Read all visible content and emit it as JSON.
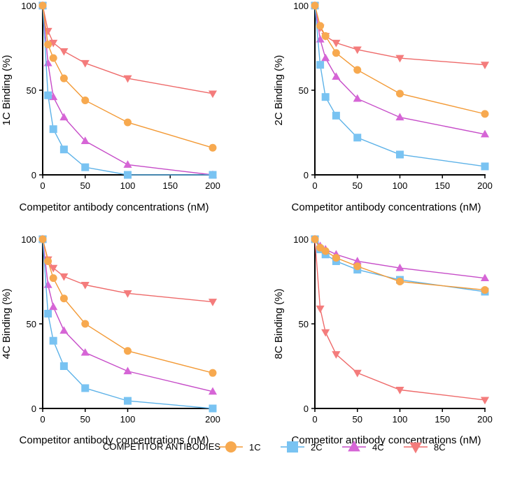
{
  "legend": {
    "title": "COMPETITOR ANTIBODIES",
    "items": [
      {
        "name": "1C",
        "color": "#F7A94F",
        "stroke": "#F39A36",
        "marker": "circle"
      },
      {
        "name": "2C",
        "color": "#79C3F2",
        "stroke": "#5DB2E8",
        "marker": "square"
      },
      {
        "name": "4C",
        "color": "#D665D6",
        "stroke": "#C64CC8",
        "marker": "triangle-up"
      },
      {
        "name": "8C",
        "color": "#F47C7C",
        "stroke": "#EE6A6A",
        "marker": "triangle-down"
      }
    ]
  },
  "chart_data": [
    {
      "type": "line",
      "title": "",
      "xlabel": "Competitor antibody concentrations (nM)",
      "ylabel": "1C Binding (%)",
      "xlim": [
        0,
        200
      ],
      "ylim": [
        0,
        100
      ],
      "xticks": [
        0,
        50,
        100,
        150,
        200
      ],
      "yticks": [
        0,
        50,
        100
      ],
      "x": [
        0,
        6.25,
        12.5,
        25,
        50,
        100,
        200
      ],
      "series": [
        {
          "name": "1C",
          "values": [
            100,
            77,
            69,
            57,
            44,
            31,
            16
          ]
        },
        {
          "name": "2C",
          "values": [
            100,
            47,
            27,
            15,
            4.5,
            0,
            0
          ]
        },
        {
          "name": "4C",
          "values": [
            100,
            66,
            46,
            34,
            20,
            6,
            0
          ]
        },
        {
          "name": "8C",
          "values": [
            100,
            85,
            78,
            73,
            66,
            57,
            48
          ]
        }
      ]
    },
    {
      "type": "line",
      "title": "",
      "xlabel": "Competitor antibody concentrations (nM)",
      "ylabel": "2C Binding (%)",
      "xlim": [
        0,
        200
      ],
      "ylim": [
        0,
        100
      ],
      "xticks": [
        0,
        50,
        100,
        150,
        200
      ],
      "yticks": [
        0,
        50,
        100
      ],
      "x": [
        0,
        6.25,
        12.5,
        25,
        50,
        100,
        200
      ],
      "series": [
        {
          "name": "1C",
          "values": [
            100,
            88,
            82,
            72,
            62,
            48,
            36
          ]
        },
        {
          "name": "2C",
          "values": [
            100,
            65,
            46,
            35,
            22,
            12,
            5
          ]
        },
        {
          "name": "4C",
          "values": [
            100,
            80,
            69,
            58,
            45,
            34,
            24
          ]
        },
        {
          "name": "8C",
          "values": [
            100,
            87,
            82,
            78,
            74,
            69,
            65
          ]
        }
      ]
    },
    {
      "type": "line",
      "title": "",
      "xlabel": "Competitor antibody concentrations (nM)",
      "ylabel": "4C Binding (%)",
      "xlim": [
        0,
        200
      ],
      "ylim": [
        0,
        100
      ],
      "xticks": [
        0,
        50,
        100,
        200
      ],
      "yticks": [
        0,
        50,
        100
      ],
      "x": [
        0,
        6.25,
        12.5,
        25,
        50,
        100,
        200
      ],
      "series": [
        {
          "name": "1C",
          "values": [
            100,
            87,
            77,
            65,
            50,
            34,
            21
          ]
        },
        {
          "name": "2C",
          "values": [
            100,
            56,
            40,
            25,
            12,
            4.5,
            0
          ]
        },
        {
          "name": "4C",
          "values": [
            100,
            73,
            60,
            46,
            33,
            22,
            10
          ]
        },
        {
          "name": "8C",
          "values": [
            100,
            88,
            83,
            78,
            73,
            68,
            63
          ]
        }
      ]
    },
    {
      "type": "line",
      "title": "",
      "xlabel": "Competitor antibody concentrations (nM)",
      "ylabel": "8C Binding (%)",
      "xlim": [
        0,
        200
      ],
      "ylim": [
        0,
        100
      ],
      "xticks": [
        0,
        50,
        100,
        150,
        200
      ],
      "yticks": [
        0,
        50,
        100
      ],
      "x": [
        0,
        6.25,
        12.5,
        25,
        50,
        100,
        200
      ],
      "series": [
        {
          "name": "1C",
          "values": [
            100,
            95,
            93,
            89,
            84,
            75,
            70
          ]
        },
        {
          "name": "2C",
          "values": [
            100,
            94,
            91,
            87,
            82,
            76,
            69
          ]
        },
        {
          "name": "4C",
          "values": [
            100,
            96,
            94,
            91,
            87,
            83,
            77
          ]
        },
        {
          "name": "8C",
          "values": [
            100,
            59,
            45,
            32,
            21,
            11,
            5
          ]
        }
      ]
    }
  ]
}
